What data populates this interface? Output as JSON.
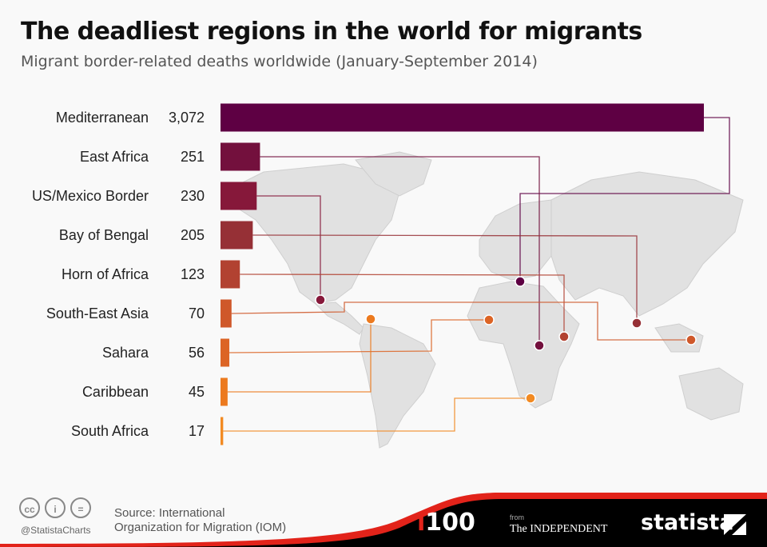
{
  "title": "The deadliest regions in the world for migrants",
  "subtitle": "Migrant border-related deaths worldwide (January-September 2014)",
  "chart_data": {
    "type": "bar",
    "orientation": "horizontal",
    "title": "The deadliest regions in the world for migrants",
    "subtitle": "Migrant border-related deaths worldwide (January-September 2014)",
    "categories": [
      "Mediterranean",
      "East Africa",
      "US/Mexico Border",
      "Bay of Bengal",
      "Horn of Africa",
      "South-East Asia",
      "Sahara",
      "Caribbean",
      "South Africa"
    ],
    "values": [
      3072,
      251,
      230,
      205,
      123,
      70,
      56,
      45,
      17
    ],
    "value_labels": [
      "3,072",
      "251",
      "230",
      "205",
      "123",
      "70",
      "56",
      "45",
      "17"
    ],
    "colors": [
      "#5e0043",
      "#73103d",
      "#86183a",
      "#963036",
      "#b24231",
      "#cf582a",
      "#dc6425",
      "#ec7a1f",
      "#f28a22"
    ],
    "background_map": "world map with leader lines from each bar to a dot on its region",
    "grid": false
  },
  "footer": {
    "license_icons": [
      "cc-icon",
      "attribution-icon",
      "no-derivatives-icon"
    ],
    "handle": "@StatistaCharts",
    "source_line1": "Source: International",
    "source_line2": "Organization for Migration (IOM)",
    "logo_i100_i": "i",
    "logo_i100_rest": "100",
    "indep_from": "from",
    "indep_name": "The INDEPENDENT",
    "statista": "statista"
  }
}
